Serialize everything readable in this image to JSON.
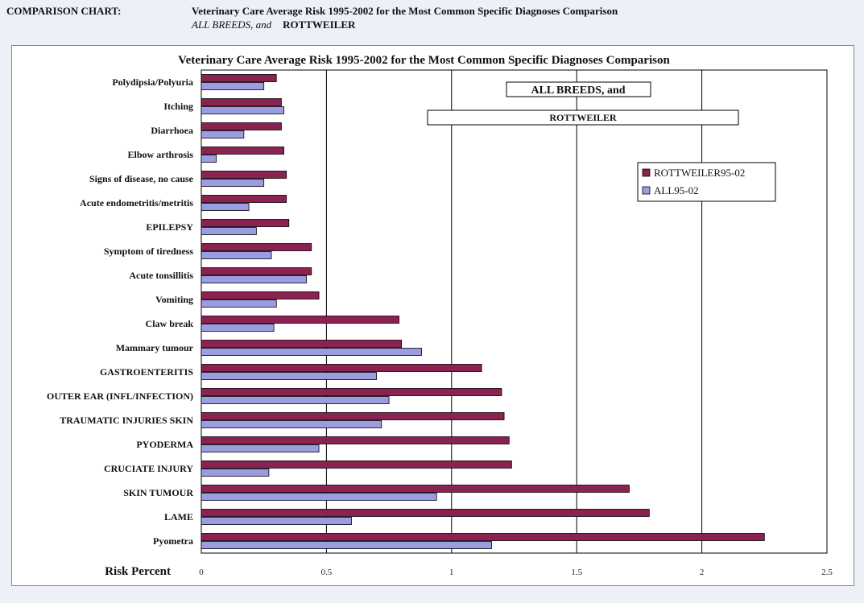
{
  "header": {
    "label": "COMPARISON CHART:",
    "title": "Veterinary Care Average Risk 1995-2002 for the Most Common Specific Diagnoses Comparison",
    "line2_italic": "ALL BREEDS, and",
    "line2_bold": "ROTTWEILER"
  },
  "chart_data": {
    "type": "bar",
    "orientation": "horizontal",
    "title": "Veterinary Care Average Risk 1995-2002 for the Most Common Specific Diagnoses Comparison",
    "xlabel": "Risk Percent",
    "xlim": [
      0,
      2.5
    ],
    "xticks": [
      "0",
      "0.5",
      "1",
      "1.5",
      "2",
      "2.5"
    ],
    "grid": true,
    "legend_position": "top-right",
    "boxes": [
      "ALL BREEDS, and",
      "ROTTWEILER"
    ],
    "categories": [
      "Polydipsia/Polyuria",
      "Itching",
      "Diarrhoea",
      "Elbow arthrosis",
      "Signs of disease, no cause",
      "Acute endometritis/metritis",
      "EPILEPSY",
      "Symptom of tiredness",
      "Acute tonsillitis",
      "Vomiting",
      "Claw break",
      "Mammary tumour",
      "GASTROENTERITIS",
      "OUTER EAR (INFL/INFECTION)",
      "TRAUMATIC INJURIES SKIN",
      "PYODERMA",
      "CRUCIATE INJURY",
      "SKIN TUMOUR",
      "LAME",
      "Pyometra"
    ],
    "series": [
      {
        "name": "ROTTWEILER95-02",
        "color": "#8b2252",
        "values": [
          0.3,
          0.32,
          0.32,
          0.33,
          0.34,
          0.34,
          0.35,
          0.44,
          0.44,
          0.47,
          0.79,
          0.8,
          1.12,
          1.2,
          1.21,
          1.23,
          1.24,
          1.71,
          1.79,
          2.25
        ]
      },
      {
        "name": "ALL95-02",
        "color": "#9c9ce0",
        "values": [
          0.25,
          0.33,
          0.17,
          0.06,
          0.25,
          0.19,
          0.22,
          0.28,
          0.42,
          0.3,
          0.29,
          0.88,
          0.7,
          0.75,
          0.72,
          0.47,
          0.27,
          0.94,
          0.6,
          1.16
        ]
      }
    ]
  }
}
